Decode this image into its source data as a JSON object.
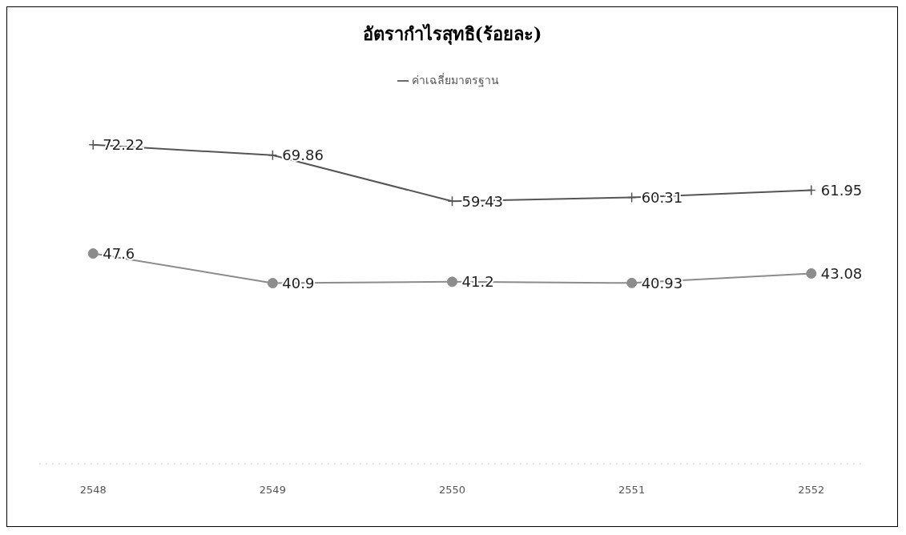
{
  "chart_data": {
    "type": "line",
    "title": "อัตรากำไรสุทธิ(ร้อยละ)",
    "categories": [
      "2548",
      "2549",
      "2550",
      "2551",
      "2552"
    ],
    "tick_labels": "x",
    "legend": "top",
    "data_labels": true,
    "series": [
      {
        "color": "#8c8c8c",
        "marker": "circle",
        "values": [
          47.6,
          40.9,
          41.2,
          40.93,
          43.08
        ]
      },
      {
        "name": "ค่าเฉลี่ยมาตรฐาน",
        "color": "#555555",
        "marker": "cross",
        "values": [
          72.22,
          69.86,
          59.43,
          60.31,
          61.95
        ]
      }
    ]
  }
}
